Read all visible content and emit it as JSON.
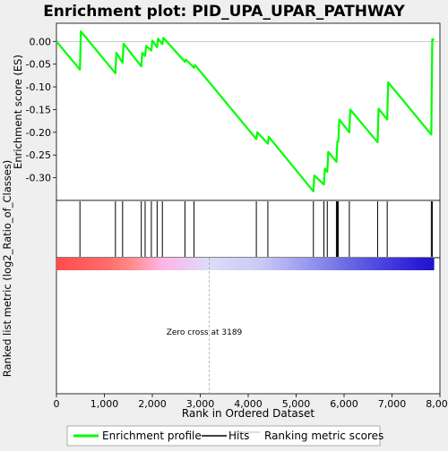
{
  "chart_data": {
    "type": "line",
    "title": "Enrichment plot: PID_UPA_UPAR_PATHWAY",
    "xlabel": "Rank in Ordered Dataset",
    "ylabel_top": "Enrichment score (ES)",
    "ylabel_bottom": "Ranked list metric (log2_Ratio_of_Classes)",
    "xlim": [
      0,
      8000
    ],
    "ylim_es": [
      -0.35,
      0.04
    ],
    "x_ticks": [
      0,
      1000,
      2000,
      3000,
      4000,
      5000,
      6000,
      7000,
      8000
    ],
    "x_tick_labels": [
      "0",
      "1,000",
      "2,000",
      "3,000",
      "4,000",
      "5,000",
      "6,000",
      "7,000",
      "8,000"
    ],
    "y_ticks": [
      0.0,
      -0.05,
      -0.1,
      -0.15,
      -0.2,
      -0.25,
      -0.3
    ],
    "y_tick_labels": [
      "0.00",
      "-0.05",
      "-0.10",
      "-0.15",
      "-0.20",
      "-0.25",
      "-0.30"
    ],
    "annotation": "Zero cross at 3189",
    "zero_cross": 3189,
    "grid": false,
    "legend_position": "bottom",
    "series": [
      {
        "name": "Enrichment profile",
        "color": "#00ff00",
        "points": [
          [
            0,
            0.0
          ],
          [
            490,
            -0.062
          ],
          [
            510,
            0.022
          ],
          [
            1230,
            -0.07
          ],
          [
            1250,
            -0.025
          ],
          [
            1380,
            -0.047
          ],
          [
            1400,
            -0.005
          ],
          [
            1770,
            -0.055
          ],
          [
            1790,
            -0.025
          ],
          [
            1850,
            -0.032
          ],
          [
            1870,
            -0.01
          ],
          [
            1980,
            -0.02
          ],
          [
            2000,
            0.002
          ],
          [
            2100,
            -0.013
          ],
          [
            2120,
            0.006
          ],
          [
            2210,
            -0.006
          ],
          [
            2230,
            0.008
          ],
          [
            2680,
            -0.045
          ],
          [
            2700,
            -0.04
          ],
          [
            2870,
            -0.058
          ],
          [
            2890,
            -0.052
          ],
          [
            4170,
            -0.215
          ],
          [
            4190,
            -0.2
          ],
          [
            4410,
            -0.225
          ],
          [
            4430,
            -0.21
          ],
          [
            5360,
            -0.33
          ],
          [
            5380,
            -0.295
          ],
          [
            5580,
            -0.315
          ],
          [
            5600,
            -0.28
          ],
          [
            5650,
            -0.287
          ],
          [
            5670,
            -0.243
          ],
          [
            5840,
            -0.265
          ],
          [
            5860,
            -0.22
          ],
          [
            5880,
            -0.22
          ],
          [
            5900,
            -0.172
          ],
          [
            6110,
            -0.2
          ],
          [
            6130,
            -0.15
          ],
          [
            6700,
            -0.222
          ],
          [
            6720,
            -0.148
          ],
          [
            6900,
            -0.172
          ],
          [
            6920,
            -0.09
          ],
          [
            7820,
            -0.205
          ],
          [
            7840,
            0.005
          ],
          [
            7880,
            0.003
          ]
        ]
      }
    ],
    "hits": [
      490,
      1230,
      1380,
      1770,
      1850,
      1980,
      2100,
      2210,
      2680,
      2870,
      4170,
      4410,
      5360,
      5580,
      5650,
      5840,
      5860,
      5880,
      6110,
      6700,
      6900,
      7820,
      7840
    ],
    "hits_legend_label": "Hits",
    "ranking_legend_label": "Ranking metric scores",
    "ranking_gradient": [
      {
        "x": 0,
        "color": "#ff4c4c"
      },
      {
        "x": 1050,
        "color": "#ff6a6a"
      },
      {
        "x": 1550,
        "color": "#ff8a8a"
      },
      {
        "x": 2200,
        "color": "#ffb4e6"
      },
      {
        "x": 3189,
        "color": "#dcdcfa"
      },
      {
        "x": 4300,
        "color": "#c8c8f5"
      },
      {
        "x": 5400,
        "color": "#9090ee"
      },
      {
        "x": 6100,
        "color": "#6868e6"
      },
      {
        "x": 7500,
        "color": "#2c1fd6"
      },
      {
        "x": 7880,
        "color": "#1e14c8"
      }
    ]
  }
}
